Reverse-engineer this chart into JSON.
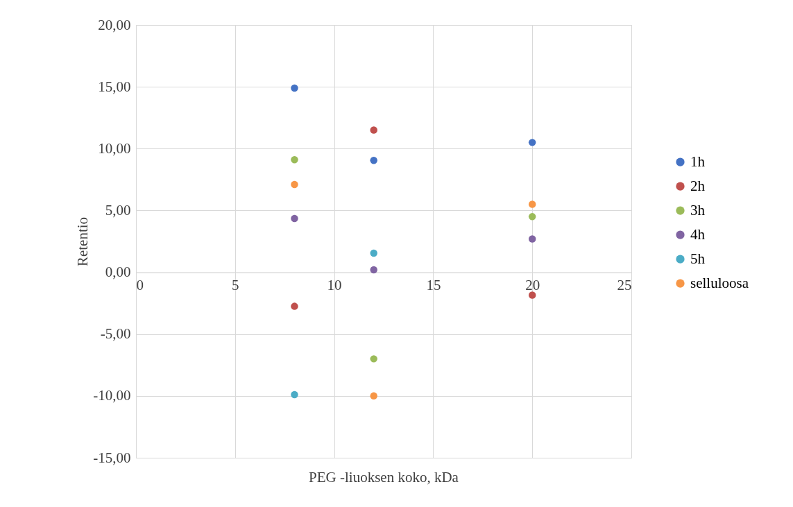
{
  "chart_data": {
    "type": "scatter",
    "xlabel": "PEG -liuoksen koko, kDa",
    "ylabel": "Retentio",
    "x": [
      8,
      12,
      20
    ],
    "series": [
      {
        "name": "1h",
        "color": "#4472c4",
        "values": [
          14.9,
          9.05,
          10.5
        ]
      },
      {
        "name": "2h",
        "color": "#c0504d",
        "values": [
          -2.75,
          11.5,
          -1.85
        ]
      },
      {
        "name": "3h",
        "color": "#9bbb59",
        "values": [
          9.1,
          -7.0,
          4.5
        ]
      },
      {
        "name": "4h",
        "color": "#8064a2",
        "values": [
          4.35,
          0.2,
          2.7
        ]
      },
      {
        "name": "5h",
        "color": "#4bacc6",
        "values": [
          -9.9,
          1.55,
          null
        ]
      },
      {
        "name": "selluloosa",
        "color": "#f79646",
        "values": [
          7.1,
          -10.0,
          5.5
        ]
      }
    ],
    "xlim": [
      0,
      25
    ],
    "xticks": [
      0,
      5,
      10,
      15,
      20,
      25
    ],
    "ylim": [
      -15,
      20
    ],
    "yticks": [
      {
        "value": -15,
        "label": "-15,00"
      },
      {
        "value": -10,
        "label": "-10,00"
      },
      {
        "value": -5,
        "label": "-5,00"
      },
      {
        "value": 0,
        "label": "0,00"
      },
      {
        "value": 5,
        "label": "5,00"
      },
      {
        "value": 10,
        "label": "10,00"
      },
      {
        "value": 15,
        "label": "15,00"
      },
      {
        "value": 20,
        "label": "20,00"
      }
    ],
    "grid": true,
    "legend": "right",
    "marker": "circle"
  }
}
